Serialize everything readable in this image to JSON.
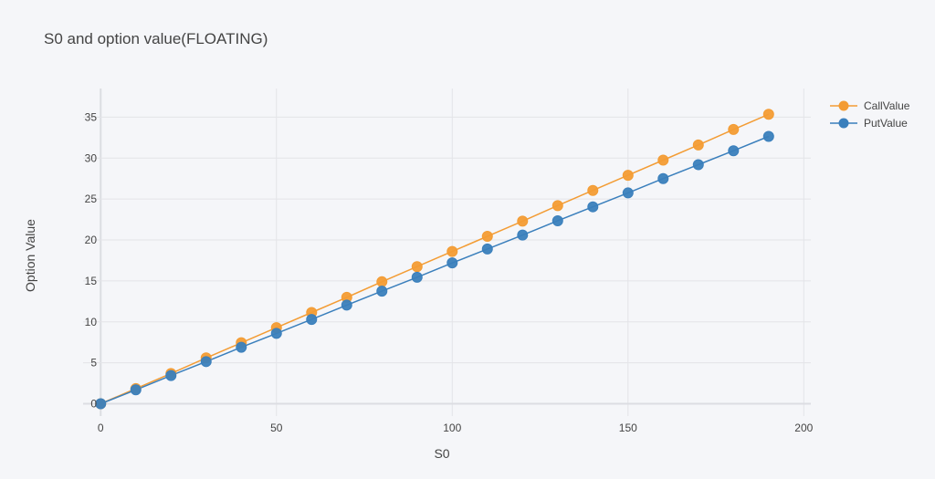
{
  "chart_data": {
    "type": "line",
    "title": "S0 and option value(FLOATING)",
    "xlabel": "S0",
    "ylabel": "Option Value",
    "xlim": [
      -5,
      202
    ],
    "ylim": [
      -1.5,
      38.5
    ],
    "xticks": [
      0,
      50,
      100,
      150,
      200
    ],
    "yticks": [
      0,
      5,
      10,
      15,
      20,
      25,
      30,
      35
    ],
    "grid": true,
    "legend": "top-right",
    "mode": "lines+markers",
    "x": [
      0,
      10,
      20,
      30,
      40,
      50,
      60,
      70,
      80,
      90,
      100,
      110,
      120,
      130,
      140,
      150,
      160,
      170,
      180,
      190
    ],
    "series": [
      {
        "name": "CallValue",
        "color": "#f39c34",
        "values": [
          0,
          1.85,
          3.7,
          5.6,
          7.45,
          9.3,
          11.15,
          13.0,
          14.9,
          16.75,
          18.6,
          20.45,
          22.3,
          24.2,
          26.05,
          27.9,
          29.75,
          31.6,
          33.5,
          35.35
        ]
      },
      {
        "name": "PutValue",
        "color": "#3a7fbc",
        "values": [
          0,
          1.7,
          3.45,
          5.15,
          6.9,
          8.6,
          10.3,
          12.05,
          13.75,
          15.45,
          17.2,
          18.9,
          20.6,
          22.35,
          24.05,
          25.75,
          27.5,
          29.2,
          30.9,
          32.65
        ]
      }
    ]
  }
}
